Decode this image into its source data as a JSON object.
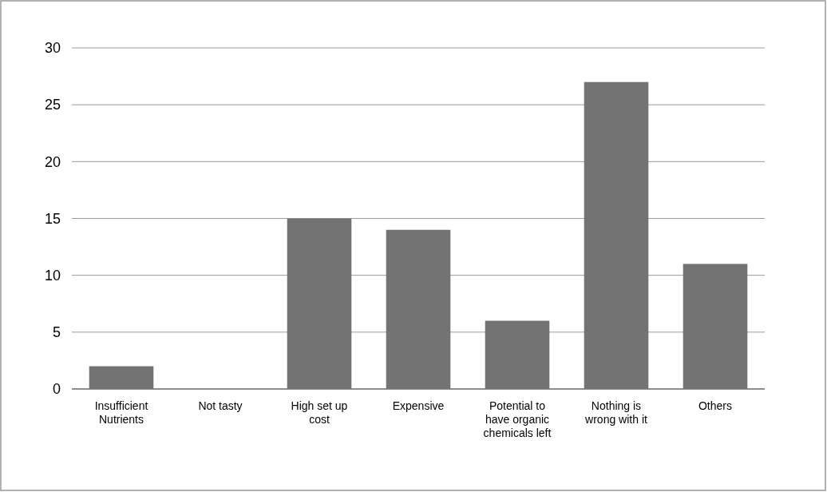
{
  "chart_data": {
    "type": "bar",
    "categories": [
      "Insufficient Nutrients",
      "Not tasty",
      "High set up cost",
      "Expensive",
      "Potential to have organic chemicals left",
      "Nothing is wrong with it",
      "Others"
    ],
    "values": [
      2,
      0,
      15,
      14,
      6,
      27,
      11
    ],
    "color": "#737373",
    "ylim": [
      0,
      30
    ],
    "yticks": [
      0,
      5,
      10,
      15,
      20,
      25,
      30
    ],
    "grid": "y"
  }
}
